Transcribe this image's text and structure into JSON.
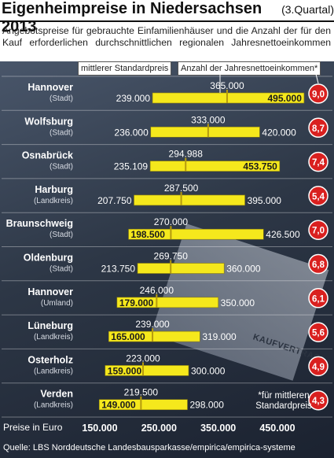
{
  "header": {
    "title": "Eigenheimpreise in Niedersachsen 2013",
    "quarter": "(3.Quartal)",
    "subtitle": "Angebotspreise für gebrauchte Einfamilienhäuser und die Anzahl der für den Kauf erforderlichen durchschnittlichen regionalen Jahresnettoeinkommen"
  },
  "legend": {
    "median": "mittlerer Standardpreis",
    "income": "Anzahl der Jahresnettoeinkommen*"
  },
  "image_text": "KAUFVERTRAG",
  "footnote": "*für mittleren Standardpreis",
  "axis_label": "Preise in Euro",
  "source": "Quelle: LBS Norddeutsche Landesbausparkasse/empirica/empirica-systeme",
  "colors": {
    "bar": "#f5e81c",
    "badge": "#d9201f",
    "median_tick": "#b59a0e",
    "bg_dark": "#2d3746"
  },
  "chart_data": {
    "type": "bar",
    "orientation": "horizontal-range",
    "x_ticks": [
      150000,
      250000,
      350000,
      450000
    ],
    "x_tick_labels": [
      "150.000",
      "250.000",
      "350.000",
      "450.000"
    ],
    "x_range": [
      100000,
      500000
    ],
    "categories": [
      {
        "city": "Hannover",
        "type": "(Stadt)"
      },
      {
        "city": "Wolfsburg",
        "type": "(Stadt)"
      },
      {
        "city": "Osnabrück",
        "type": "(Stadt)"
      },
      {
        "city": "Harburg",
        "type": "(Landkreis)"
      },
      {
        "city": "Braunschweig",
        "type": "(Stadt)"
      },
      {
        "city": "Oldenburg",
        "type": "(Stadt)"
      },
      {
        "city": "Hannover",
        "type": "(Umland)"
      },
      {
        "city": "Lüneburg",
        "type": "(Landkreis)"
      },
      {
        "city": "Osterholz",
        "type": "(Landkreis)"
      },
      {
        "city": "Verden",
        "type": "(Landkreis)"
      }
    ],
    "low": [
      239000,
      236000,
      235109,
      207750,
      198500,
      213750,
      179000,
      165000,
      159000,
      149000
    ],
    "low_labels": [
      "239.000",
      "236.000",
      "235.109",
      "207.750",
      "198.500",
      "213.750",
      "179.000",
      "165.000",
      "159.000",
      "149.000"
    ],
    "high": [
      495000,
      420000,
      453750,
      395000,
      426500,
      360000,
      350000,
      319000,
      300000,
      298000
    ],
    "high_labels": [
      "495.000",
      "420.000",
      "453.750",
      "395.000",
      "426.500",
      "360.000",
      "350.000",
      "319.000",
      "300.000",
      "298.000"
    ],
    "median": [
      365000,
      333000,
      294988,
      287500,
      270000,
      269750,
      246000,
      239000,
      223000,
      219500
    ],
    "median_labels": [
      "365.000",
      "333.000",
      "294.988",
      "287.500",
      "270.000",
      "269.750",
      "246.000",
      "239.000",
      "223.000",
      "219.500"
    ],
    "income_multiple": [
      "9,0",
      "8,7",
      "7,4",
      "5,4",
      "7,0",
      "6,8",
      "6,1",
      "5,6",
      "4,9",
      "4,3"
    ]
  }
}
